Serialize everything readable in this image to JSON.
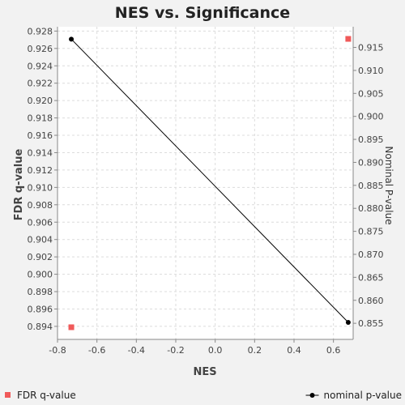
{
  "chart_data": {
    "type": "scatter",
    "title": "NES vs. Significance",
    "xlabel": "NES",
    "ylabel_left": "FDR q-value",
    "ylabel_right": "Nominal P-value",
    "xlim": [
      -0.8,
      0.7
    ],
    "ylim_left": [
      0.8925,
      0.9285
    ],
    "ylim_right": [
      0.8515,
      0.9195
    ],
    "xticks": [
      -0.8,
      -0.6,
      -0.4,
      -0.2,
      0.0,
      0.2,
      0.4,
      0.6
    ],
    "xtick_labels": [
      "-0.8",
      "-0.6",
      "-0.4",
      "-0.2",
      "0.0",
      "0.2",
      "0.4",
      "0.6"
    ],
    "yticks_left": [
      0.894,
      0.896,
      0.898,
      0.9,
      0.902,
      0.904,
      0.906,
      0.908,
      0.91,
      0.912,
      0.914,
      0.916,
      0.918,
      0.92,
      0.922,
      0.924,
      0.926,
      0.928
    ],
    "ytick_labels_left": [
      "0.894",
      "0.896",
      "0.898",
      "0.900",
      "0.902",
      "0.904",
      "0.906",
      "0.908",
      "0.910",
      "0.912",
      "0.914",
      "0.916",
      "0.918",
      "0.920",
      "0.922",
      "0.924",
      "0.926",
      "0.928"
    ],
    "yticks_right": [
      0.855,
      0.86,
      0.865,
      0.87,
      0.875,
      0.88,
      0.885,
      0.89,
      0.895,
      0.9,
      0.905,
      0.91,
      0.915
    ],
    "ytick_labels_right": [
      "0.855",
      "0.860",
      "0.865",
      "0.870",
      "0.875",
      "0.880",
      "0.885",
      "0.890",
      "0.895",
      "0.900",
      "0.905",
      "0.910",
      "0.915"
    ],
    "grid": true,
    "legend_placement": "bottom",
    "series": [
      {
        "name": "FDR q-value",
        "axis": "left",
        "marker": "square",
        "color": "#f05a5a",
        "line": false,
        "points": [
          {
            "x": -0.73,
            "y": 0.8939
          },
          {
            "x": 0.675,
            "y": 0.9271
          }
        ]
      },
      {
        "name": "nominal p-value",
        "axis": "right",
        "marker": "circle",
        "color": "#000000",
        "line": true,
        "points": [
          {
            "x": -0.73,
            "y": 0.9168
          },
          {
            "x": 0.675,
            "y": 0.8552
          }
        ]
      }
    ]
  }
}
